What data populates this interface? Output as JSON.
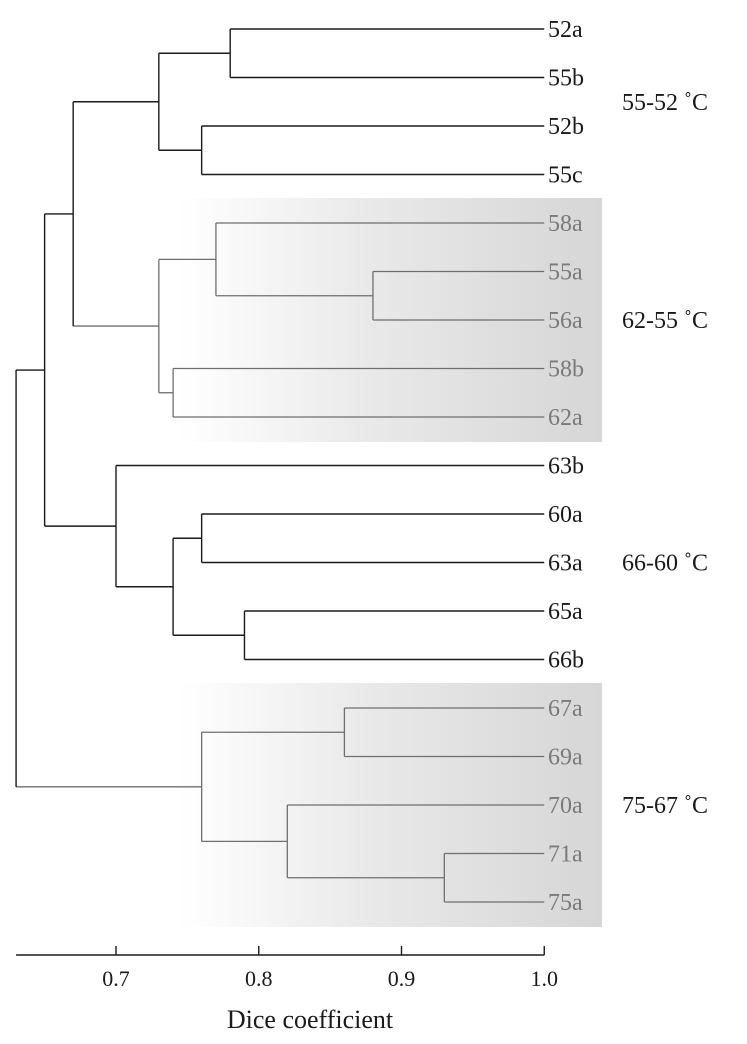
{
  "leaves": [
    {
      "label": "52a",
      "shaded": false
    },
    {
      "label": "55b",
      "shaded": false
    },
    {
      "label": "52b",
      "shaded": false
    },
    {
      "label": "55c",
      "shaded": false
    },
    {
      "label": "58a",
      "shaded": true
    },
    {
      "label": "55a",
      "shaded": true
    },
    {
      "label": "56a",
      "shaded": true
    },
    {
      "label": "58b",
      "shaded": true
    },
    {
      "label": "62a",
      "shaded": true
    },
    {
      "label": "63b",
      "shaded": false
    },
    {
      "label": "60a",
      "shaded": false
    },
    {
      "label": "63a",
      "shaded": false
    },
    {
      "label": "65a",
      "shaded": false
    },
    {
      "label": "66b",
      "shaded": false
    },
    {
      "label": "67a",
      "shaded": true
    },
    {
      "label": "69a",
      "shaded": true
    },
    {
      "label": "70a",
      "shaded": true
    },
    {
      "label": "71a",
      "shaded": true
    },
    {
      "label": "75a",
      "shaded": true
    }
  ],
  "merges": [
    {
      "a": "L0",
      "b": "L1",
      "sim": 0.78
    },
    {
      "a": "L2",
      "b": "L3",
      "sim": 0.76
    },
    {
      "a": "N0",
      "b": "N1",
      "sim": 0.73
    },
    {
      "a": "L5",
      "b": "L6",
      "sim": 0.88
    },
    {
      "a": "L4",
      "b": "N3",
      "sim": 0.77
    },
    {
      "a": "L7",
      "b": "L8",
      "sim": 0.74
    },
    {
      "a": "N4",
      "b": "N5",
      "sim": 0.73
    },
    {
      "a": "N2",
      "b": "N6",
      "sim": 0.67
    },
    {
      "a": "L10",
      "b": "L11",
      "sim": 0.76
    },
    {
      "a": "L12",
      "b": "L13",
      "sim": 0.79
    },
    {
      "a": "N8",
      "b": "N9",
      "sim": 0.74
    },
    {
      "a": "L9",
      "b": "N10",
      "sim": 0.7
    },
    {
      "a": "N7",
      "b": "N11",
      "sim": 0.65
    },
    {
      "a": "L14",
      "b": "L15",
      "sim": 0.86
    },
    {
      "a": "L17",
      "b": "L18",
      "sim": 0.93
    },
    {
      "a": "L16",
      "b": "N14",
      "sim": 0.82
    },
    {
      "a": "N13",
      "b": "N15",
      "sim": 0.76
    },
    {
      "a": "N12",
      "b": "N16",
      "sim": 0.63
    }
  ],
  "groups": [
    {
      "label": "55-52 ˚C",
      "first": 0,
      "last": 3,
      "shaded": false
    },
    {
      "label": "62-55 ˚C",
      "first": 4,
      "last": 8,
      "shaded": true
    },
    {
      "label": "66-60 ˚C",
      "first": 9,
      "last": 13,
      "shaded": false
    },
    {
      "label": "75-67 ˚C",
      "first": 14,
      "last": 18,
      "shaded": true
    }
  ],
  "axis": {
    "title": "Dice coefficient",
    "range": [
      0.63,
      1.0
    ],
    "ticks": [
      {
        "value": 0.7,
        "label": "0.7"
      },
      {
        "value": 0.8,
        "label": "0.8"
      },
      {
        "value": 0.9,
        "label": "0.9"
      },
      {
        "value": 1.0,
        "label": "1.0"
      }
    ]
  },
  "colors": {
    "main_line": "#1a1a1a",
    "shaded_line": "#6e6e6e",
    "shaded_text": "#7a7a7a",
    "main_text": "#1a1a1a",
    "shade_dark": "#d6d6d6",
    "shade_light": "#ffffff"
  }
}
